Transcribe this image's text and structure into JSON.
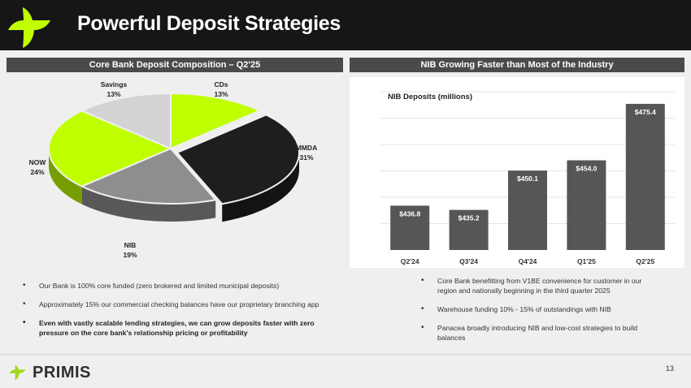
{
  "title": "Powerful Deposit Strategies",
  "colors": {
    "accent": "#c0ff00",
    "dark": "#161616",
    "bar": "#565656",
    "header": "#4a4a4a"
  },
  "left_header": "Core Bank Deposit Composition – Q2'25",
  "right_header": "NIB Growing Faster than Most of the Industry",
  "chart_data": [
    {
      "type": "pie",
      "title": "",
      "slices": [
        {
          "name": "CDs",
          "value": 13,
          "label": "13%",
          "color": "#c0ff00"
        },
        {
          "name": "MMDA",
          "value": 31,
          "label": "31%",
          "color": "#1e1e1e"
        },
        {
          "name": "NIB",
          "value": 19,
          "label": "19%",
          "color": "#8e8e8e"
        },
        {
          "name": "NOW",
          "value": 24,
          "label": "24%",
          "color": "#c0ff00"
        },
        {
          "name": "Savings",
          "value": 13,
          "label": "13%",
          "color": "#d3d3d3"
        }
      ]
    },
    {
      "type": "bar",
      "title": "NIB Deposits (millions)",
      "categories": [
        "Q2'24",
        "Q3'24",
        "Q4'24",
        "Q1'25",
        "Q2'25"
      ],
      "values": [
        436.8,
        435.2,
        450.1,
        454.0,
        475.4
      ],
      "labels": [
        "$436.8",
        "$435.2",
        "$450.1",
        "$454.0",
        "$475.4"
      ],
      "ylim": [
        420,
        480
      ],
      "grid": true,
      "xlabel": "",
      "ylabel": ""
    }
  ],
  "left_bullets": [
    "Our Bank is 100% core funded (zero brokered and limited municipal deposits)",
    "Approximately 15% our commercial checking balances have our proprietary branching app",
    "Even with vastly scalable lending strategies, we can grow deposits faster with zero pressure on the core bank's relationship pricing or profitability"
  ],
  "right_bullets": [
    "Core Bank benefitting from V1BE convenience for customer in our region and nationally beginning in the third quarter 2025",
    "Warehouse funding 10% - 15% of outstandings with NIB",
    "Panacea broadly introducing NIB and low-cost strategies to build balances"
  ],
  "footer": {
    "brand": "PRIMIS",
    "page_number": "13"
  }
}
